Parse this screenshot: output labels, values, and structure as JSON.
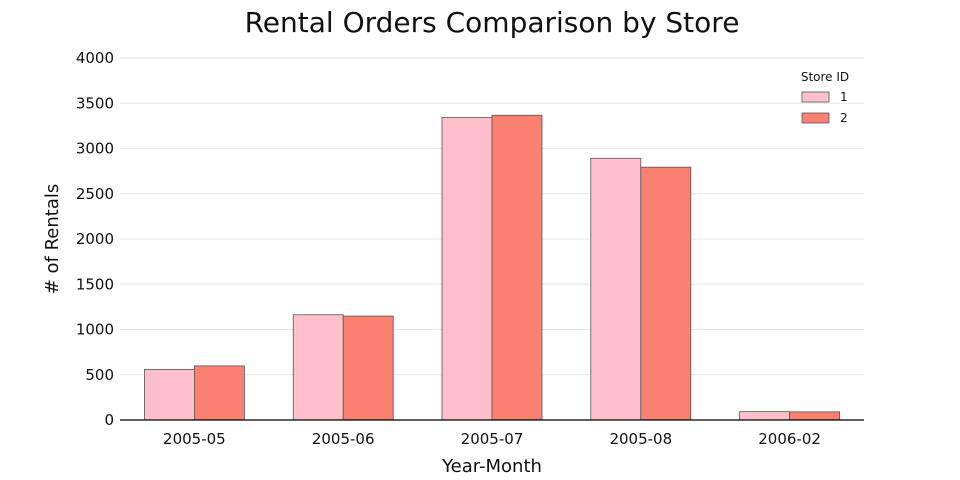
{
  "chart_data": {
    "type": "bar",
    "title": "Rental Orders Comparison by Store",
    "xlabel": "Year-Month",
    "ylabel": "# of Rentals",
    "categories": [
      "2005-05",
      "2005-06",
      "2005-07",
      "2005-08",
      "2006-02"
    ],
    "series": [
      {
        "name": "1",
        "values": [
          558,
          1163,
          3342,
          2892,
          92
        ],
        "color": "#FFC0CB"
      },
      {
        "name": "2",
        "values": [
          598,
          1148,
          3367,
          2794,
          90
        ],
        "color": "#FA8072"
      }
    ],
    "ylim": [
      0,
      4000
    ],
    "yticks": [
      "0",
      "500",
      "1000",
      "1500",
      "2000",
      "2500",
      "3000",
      "3500",
      "4000"
    ],
    "grid": true,
    "legend": {
      "title": "Store ID",
      "placement": "top-right"
    }
  }
}
